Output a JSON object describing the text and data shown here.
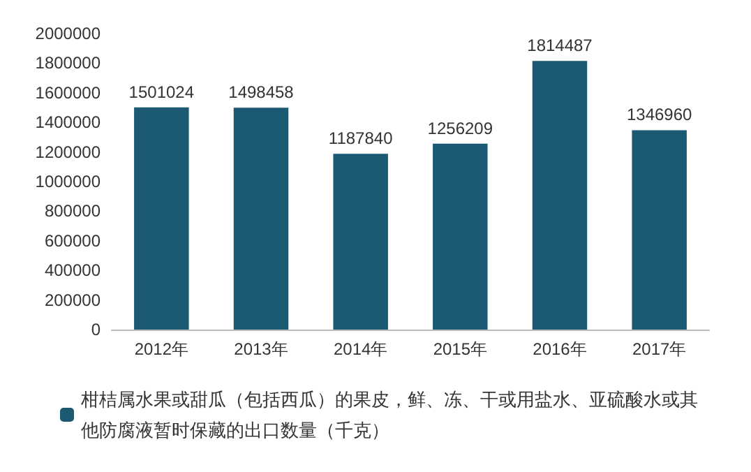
{
  "chart_data": {
    "type": "bar",
    "categories": [
      "2012年",
      "2013年",
      "2014年",
      "2015年",
      "2016年",
      "2017年"
    ],
    "series": [
      {
        "name": "柑桔属水果或甜瓜（包括西瓜）的果皮，鲜、冻、干或用盐水、亚硫酸水或其他防腐液暂时保藏的出口数量（千克）",
        "color": "#1b5a72",
        "values": [
          1501024,
          1498458,
          1187840,
          1256209,
          1814487,
          1346960
        ]
      }
    ],
    "ylim": [
      0,
      2000000
    ],
    "yticks": [
      0,
      200000,
      400000,
      600000,
      800000,
      1000000,
      1200000,
      1400000,
      1600000,
      1800000,
      2000000
    ],
    "data_labels": true,
    "legend": "bottom",
    "grid": false
  }
}
